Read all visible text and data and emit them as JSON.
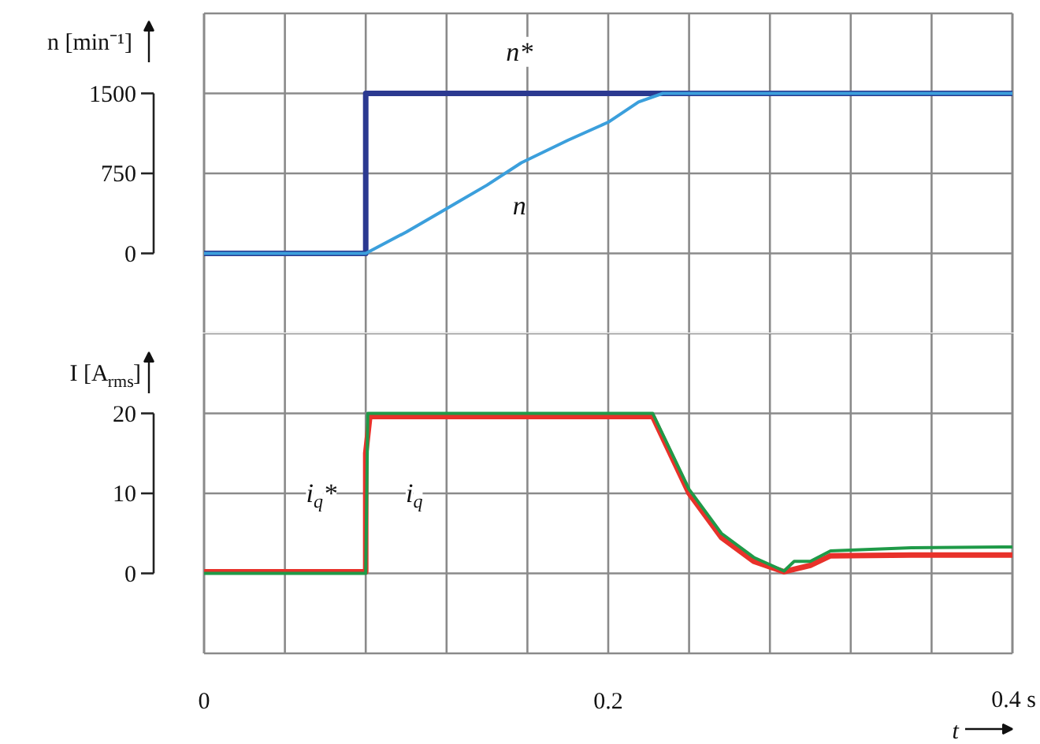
{
  "chart_data": [
    {
      "type": "line",
      "ylabel": "n [min⁻¹]",
      "xlim": [
        0,
        0.4
      ],
      "ylim": [
        -750,
        2250
      ],
      "xticks": [
        {
          "value": 0,
          "label": null
        },
        {
          "value": 0.04,
          "label": null
        },
        {
          "value": 0.08,
          "label": null
        },
        {
          "value": 0.12,
          "label": null
        },
        {
          "value": 0.16,
          "label": null
        },
        {
          "value": 0.2,
          "label": null
        },
        {
          "value": 0.24,
          "label": null
        },
        {
          "value": 0.28,
          "label": null
        },
        {
          "value": 0.32,
          "label": null
        },
        {
          "value": 0.36,
          "label": null
        },
        {
          "value": 0.4,
          "label": null
        }
      ],
      "yticks": [
        0,
        750,
        1500
      ],
      "grid": true,
      "tick_labels": "y",
      "series": [
        {
          "name": "n*",
          "color": "#2b3990",
          "x": [
            0,
            0.08,
            0.08,
            0.4
          ],
          "values": [
            0,
            0,
            1500,
            1500
          ]
        },
        {
          "name": "n",
          "color": "#3b9fdc",
          "x": [
            0,
            0.08,
            0.1,
            0.12,
            0.14,
            0.157,
            0.18,
            0.2,
            0.215,
            0.227,
            0.4
          ],
          "values": [
            0,
            0,
            200,
            420,
            640,
            850,
            1060,
            1230,
            1420,
            1500,
            1500
          ]
        }
      ]
    },
    {
      "type": "line",
      "ylabel": "I [A$_{rms}$]",
      "xlabel": "t",
      "xlim": [
        0,
        0.4
      ],
      "ylim": [
        -10,
        30
      ],
      "xticks": [
        0,
        {
          "value": 0.04,
          "label": null
        },
        {
          "value": 0.08,
          "label": null
        },
        {
          "value": 0.12,
          "label": null
        },
        {
          "value": 0.16,
          "label": null
        },
        0.2,
        {
          "value": 0.24,
          "label": null
        },
        {
          "value": 0.28,
          "label": null
        },
        {
          "value": 0.32,
          "label": null
        },
        {
          "value": 0.36,
          "label": null
        },
        {
          "value": 0.4,
          "label": "0.4 s"
        }
      ],
      "yticks": [
        0,
        10,
        20
      ],
      "grid": true,
      "series": [
        {
          "name": "i$_{q}$*",
          "color": "#e8312a",
          "x": [
            0,
            0.08,
            0.08,
            0.082,
            0.222,
            0.24,
            0.256,
            0.272,
            0.287,
            0.3,
            0.31,
            0.35,
            0.4
          ],
          "values": [
            0.2,
            0.2,
            15,
            19.6,
            19.6,
            10,
            4.5,
            1.5,
            0.2,
            1,
            2.2,
            2.3,
            2.3
          ]
        },
        {
          "name": "i$_{q}$",
          "color": "#1f9a48",
          "x": [
            0,
            0.08,
            0.081,
            0.222,
            0.24,
            0.256,
            0.272,
            0.287,
            0.292,
            0.3,
            0.31,
            0.35,
            0.4
          ],
          "values": [
            0,
            0,
            20,
            20,
            10.5,
            5,
            2,
            0.3,
            1.5,
            1.5,
            2.8,
            3.2,
            3.3
          ]
        }
      ]
    }
  ]
}
